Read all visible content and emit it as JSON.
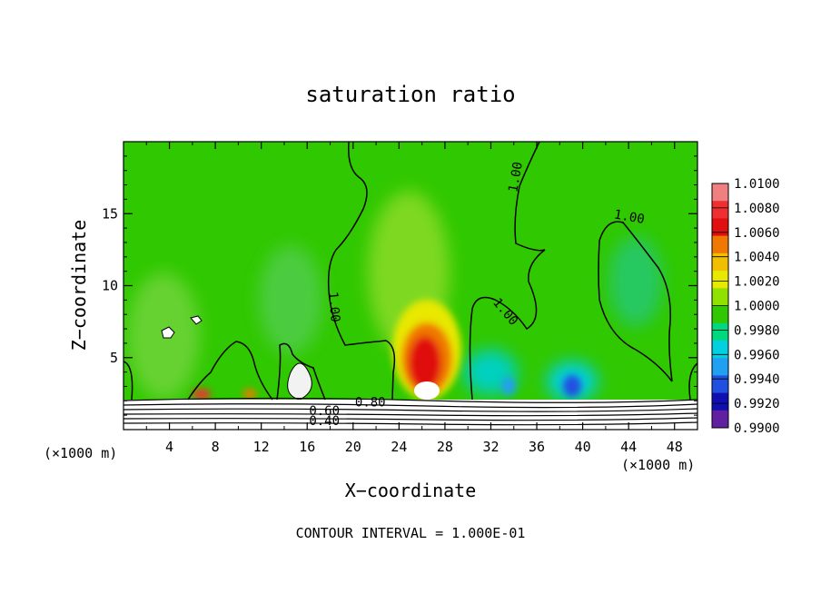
{
  "chart_data": {
    "type": "heatmap",
    "title": "saturation ratio",
    "xlabel": "X−coordinate",
    "ylabel": "Z−coordinate",
    "x_unit_left": "(×1000 m)",
    "x_unit_right": "(×1000 m)",
    "footer": "CONTOUR INTERVAL =  1.000E-01",
    "xlim": [
      0,
      50
    ],
    "ylim": [
      0,
      20
    ],
    "x_ticks": [
      4,
      8,
      12,
      16,
      20,
      24,
      28,
      32,
      36,
      40,
      44,
      48
    ],
    "y_ticks": [
      5,
      10,
      15
    ],
    "colorbar": {
      "levels": [
        "1.0100",
        "1.0080",
        "1.0060",
        "1.0040",
        "1.0020",
        "1.0000",
        "0.9980",
        "0.9960",
        "0.9940",
        "0.9920",
        "0.9900"
      ],
      "colors": [
        "#f08080",
        "#f03030",
        "#e01010",
        "#f07800",
        "#f0c000",
        "#e8e800",
        "#90e000",
        "#30c800",
        "#00d880",
        "#00d0e0",
        "#20a0f0",
        "#2050e0",
        "#1010b0",
        "#6020a0"
      ]
    },
    "contour_labels": [
      {
        "text": "1.00",
        "x": 34.5,
        "z": 17.5,
        "rot": -80
      },
      {
        "text": "1.00",
        "x": 18.0,
        "z": 8.5,
        "rot": 85
      },
      {
        "text": "1.00",
        "x": 33.0,
        "z": 8.0,
        "rot": 50
      },
      {
        "text": "1.00",
        "x": 44.0,
        "z": 14.5,
        "rot": 10
      },
      {
        "text": "0.80",
        "x": 21.5,
        "z": 1.6,
        "rot": 0
      },
      {
        "text": "0.60",
        "x": 17.5,
        "z": 1.0,
        "rot": 0
      },
      {
        "text": "0.40",
        "x": 17.5,
        "z": 0.3,
        "rot": 0
      }
    ],
    "grid": false
  }
}
